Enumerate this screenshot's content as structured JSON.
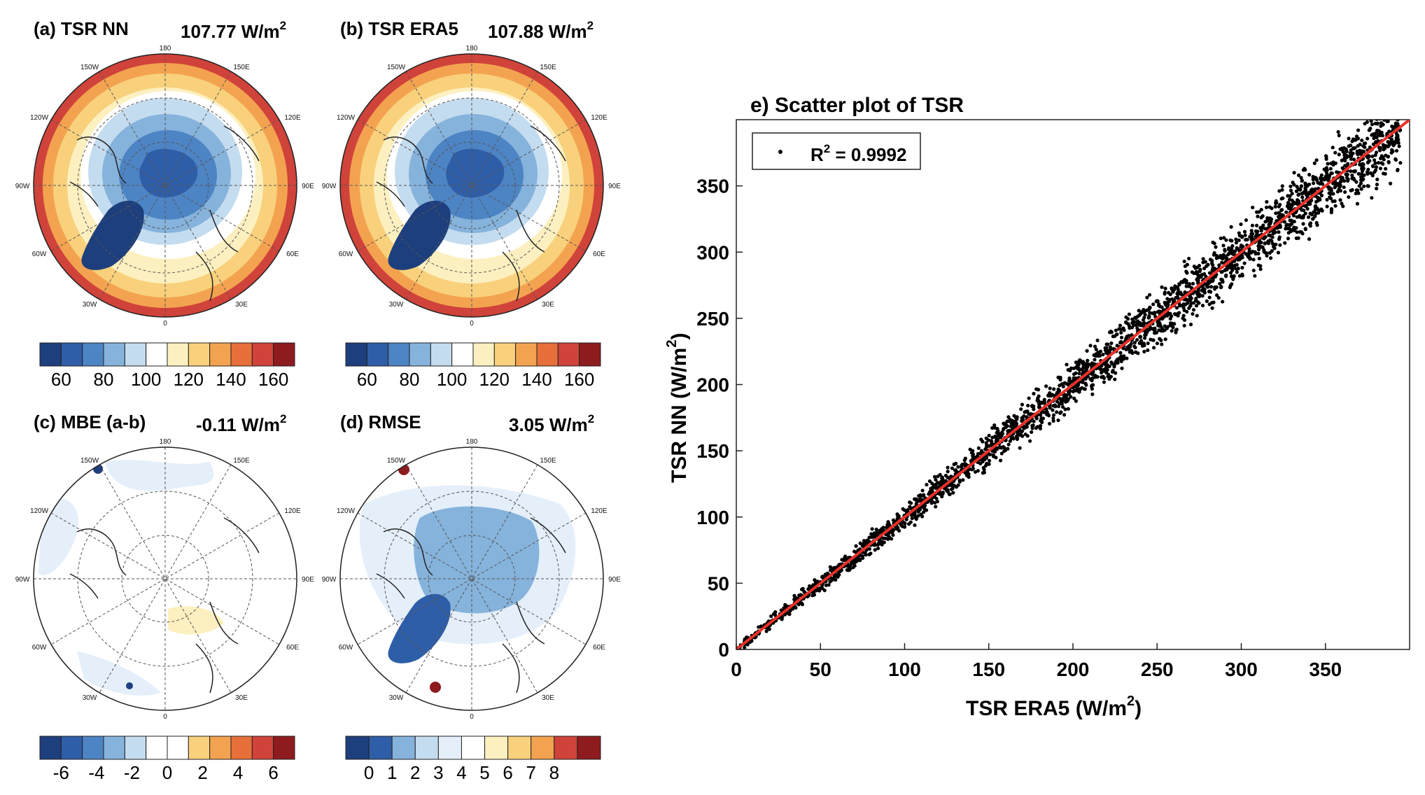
{
  "panels": [
    {
      "id": "a",
      "title": "(a) TSR NN",
      "value": "107.77 W/m",
      "sup": "2",
      "field": "tsr",
      "colorbar": "cb_tsr"
    },
    {
      "id": "b",
      "title": "(b) TSR ERA5",
      "value": "107.88 W/m",
      "sup": "2",
      "field": "tsr",
      "colorbar": "cb_tsr"
    },
    {
      "id": "c",
      "title": "(c) MBE (a-b)",
      "value": "-0.11 W/m",
      "sup": "2",
      "field": "mbe",
      "colorbar": "cb_mbe"
    },
    {
      "id": "d",
      "title": "(d) RMSE",
      "value": "3.05 W/m",
      "sup": "2",
      "field": "rmse",
      "colorbar": "cb_rmse"
    }
  ],
  "map_labels": [
    "180",
    "150E",
    "120E",
    "90E",
    "60E",
    "30E",
    "0",
    "30W",
    "60W",
    "90W",
    "120W",
    "150W"
  ],
  "colorbars": {
    "cb_tsr": {
      "colors": [
        "#1d3f7d",
        "#2f5ea8",
        "#4d84c4",
        "#86b3dc",
        "#c4dcef",
        "#ffffff",
        "#fdf0c0",
        "#f9d17c",
        "#f3a350",
        "#e7703a",
        "#d0433a",
        "#8e1b1e"
      ],
      "ticks": [
        "60",
        "80",
        "100",
        "120",
        "140",
        "160"
      ]
    },
    "cb_mbe": {
      "colors": [
        "#1d3f7d",
        "#2f5ea8",
        "#4d84c4",
        "#86b3dc",
        "#c4dcef",
        "#ffffff",
        "#ffffff",
        "#f9d17c",
        "#f3a350",
        "#e7703a",
        "#d0433a",
        "#8e1b1e"
      ],
      "ticks": [
        "-6",
        "-4",
        "-2",
        "0",
        "2",
        "4",
        "6"
      ]
    },
    "cb_rmse": {
      "colors": [
        "#1d3f7d",
        "#2f5ea8",
        "#86b3dc",
        "#c4dcef",
        "#e4effa",
        "#ffffff",
        "#fdf0c0",
        "#f9d17c",
        "#f3a350",
        "#d0433a",
        "#8e1b1e"
      ],
      "ticks": [
        "0",
        "1",
        "2",
        "3",
        "4",
        "5",
        "6",
        "7",
        "8"
      ]
    }
  },
  "chart_data": {
    "type": "scatter",
    "title": "e) Scatter plot of TSR",
    "xlabel": "TSR ERA5   (W/m",
    "xlabel_sup": "2",
    "xlabel_end": ")",
    "ylabel": "TSR NN   (W/m",
    "ylabel_sup": "2",
    "ylabel_end": ")",
    "xlim": [
      0,
      400
    ],
    "ylim": [
      0,
      400
    ],
    "xticks": [
      0,
      50,
      100,
      150,
      200,
      250,
      300,
      350
    ],
    "yticks": [
      0,
      50,
      100,
      150,
      200,
      250,
      300,
      350
    ],
    "legend": {
      "label": "R",
      "sup": "2",
      "value": " = 0.9992",
      "position": "top-left"
    },
    "fit_line": {
      "x": [
        0,
        400
      ],
      "y": [
        0,
        400
      ],
      "color": "#e8312a"
    },
    "point_color": "#000000",
    "series_points": [
      [
        5,
        6
      ],
      [
        20,
        21
      ],
      [
        40,
        39
      ],
      [
        60,
        62
      ],
      [
        80,
        79
      ],
      [
        100,
        101
      ],
      [
        120,
        118
      ],
      [
        140,
        142
      ],
      [
        160,
        158
      ],
      [
        180,
        183
      ],
      [
        200,
        198
      ],
      [
        220,
        224
      ],
      [
        240,
        236
      ],
      [
        260,
        263
      ],
      [
        280,
        276
      ],
      [
        300,
        304
      ],
      [
        320,
        315
      ],
      [
        340,
        344
      ],
      [
        360,
        356
      ],
      [
        380,
        383
      ],
      [
        392,
        395
      ]
    ]
  }
}
